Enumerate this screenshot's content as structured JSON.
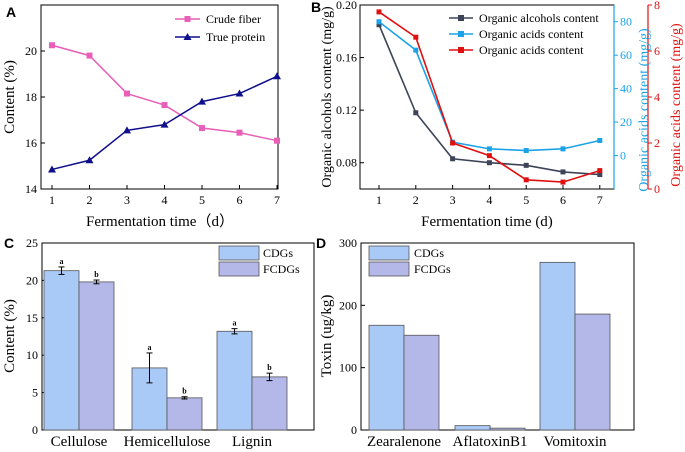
{
  "chart_data": [
    {
      "panel": "A",
      "type": "line",
      "xlabel": "Fermentation time（d）",
      "ylabel": "Content (%)",
      "x": [
        1,
        2,
        3,
        4,
        5,
        6,
        7
      ],
      "xticks": [
        "1",
        "2",
        "3",
        "4",
        "5",
        "6",
        "7"
      ],
      "ylim": [
        14,
        22
      ],
      "yticks": [
        "14",
        "16",
        "18",
        "20"
      ],
      "series": [
        {
          "name": "Crude fiber",
          "color": "#e85fb8",
          "marker": "square",
          "values": [
            20.25,
            19.8,
            18.15,
            17.65,
            16.65,
            16.45,
            16.1
          ]
        },
        {
          "name": "True protein",
          "color": "#0f0f8c",
          "marker": "triangle",
          "values": [
            14.85,
            15.25,
            16.55,
            16.8,
            17.8,
            18.15,
            18.9
          ]
        }
      ],
      "legend": "top-right"
    },
    {
      "panel": "B",
      "type": "line",
      "xlabel": "Fermentation time (d)",
      "ylabel_left": "Organic alcohols content (mg/g)",
      "ylabel_right1": "Organic acids content (mg/g)",
      "ylabel_right2": "Organic acids content (mg/g)",
      "x": [
        1,
        2,
        3,
        4,
        5,
        6,
        7
      ],
      "xticks": [
        "1",
        "2",
        "3",
        "4",
        "5",
        "6",
        "7"
      ],
      "ylim_left": [
        0.06,
        0.2
      ],
      "yticks_left": [
        "0.08",
        "0.12",
        "0.16",
        "0.20"
      ],
      "ylim_right1": [
        -20,
        90
      ],
      "yticks_right1": [
        "0",
        "20",
        "40",
        "60",
        "80"
      ],
      "ylim_right2": [
        0,
        8
      ],
      "yticks_right2": [
        "0",
        "2",
        "4",
        "6",
        "8"
      ],
      "series": [
        {
          "name": "Organic alcohols content",
          "color": "#3d4458",
          "axis": "left",
          "values": [
            0.185,
            0.118,
            0.083,
            0.08,
            0.078,
            0.073,
            0.071
          ]
        },
        {
          "name": "Organic acids content",
          "color": "#1aa3e8",
          "axis": "right1",
          "values": [
            80,
            63,
            8,
            4,
            3,
            4,
            9
          ]
        },
        {
          "name": "Organic acids content",
          "color": "#e01010",
          "axis": "right2",
          "values": [
            7.7,
            6.6,
            2.0,
            1.45,
            0.4,
            0.3,
            0.8
          ]
        }
      ],
      "legend": "top-right"
    },
    {
      "panel": "C",
      "type": "bar",
      "ylabel": "Content (%)",
      "categories": [
        "Cellulose",
        "Hemicellulose",
        "Lignin"
      ],
      "ylim": [
        0,
        25
      ],
      "yticks": [
        "0",
        "5",
        "10",
        "15",
        "20",
        "25"
      ],
      "series": [
        {
          "name": "CDGs",
          "color": "#a9c9f6",
          "values": [
            21.3,
            8.3,
            13.2
          ],
          "errors": [
            0.5,
            2.0,
            0.35
          ],
          "labels": [
            "a",
            "a",
            "a"
          ]
        },
        {
          "name": "FCDGs",
          "color": "#b3b8e8",
          "values": [
            19.8,
            4.3,
            7.1
          ],
          "errors": [
            0.25,
            0.15,
            0.5
          ],
          "labels": [
            "b",
            "b",
            "b"
          ]
        }
      ],
      "legend": "top-right"
    },
    {
      "panel": "D",
      "type": "bar",
      "ylabel": "Toxin (ug/kg)",
      "categories": [
        "Zearalenone",
        "AflatoxinB1",
        "Vomitoxin"
      ],
      "ylim": [
        0,
        300
      ],
      "yticks": [
        "0",
        "100",
        "200",
        "300"
      ],
      "series": [
        {
          "name": "CDGs",
          "color": "#a9c9f6",
          "values": [
            168,
            7,
            269
          ]
        },
        {
          "name": "FCDGs",
          "color": "#b3b8e8",
          "values": [
            152,
            3,
            186
          ]
        }
      ],
      "legend": "top-left"
    }
  ]
}
